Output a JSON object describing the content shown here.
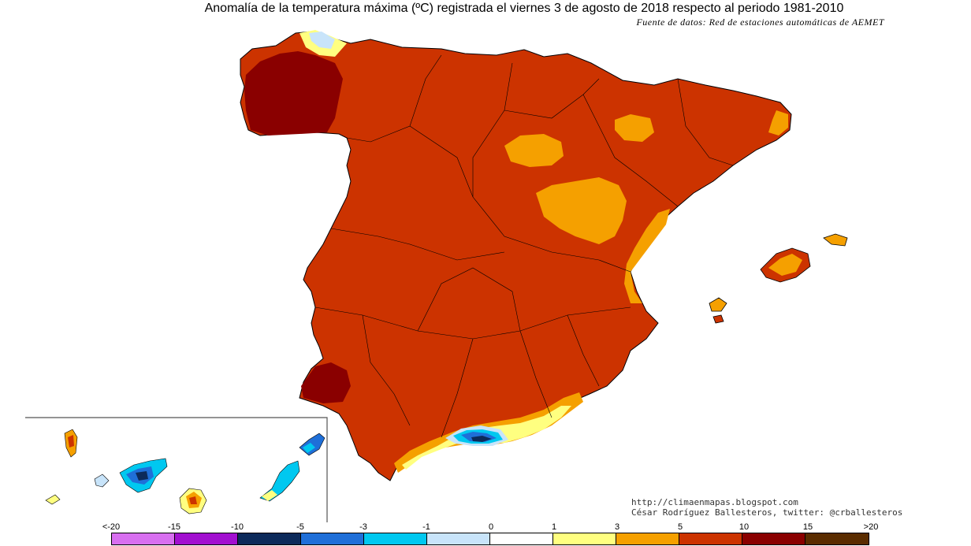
{
  "title": "Anomalía de la temperatura máxima (ºC) registrada el viernes 3 de agosto de 2018 respecto al periodo 1981-2010",
  "source": "Fuente de datos: Red de estaciones automáticas de AEMET",
  "credits": {
    "url": "http://climaenmapas.blogspot.com",
    "author": "César Rodríguez Ballesteros, twitter: @crballesteros"
  },
  "legend": {
    "labels": [
      "<-20",
      "-15",
      "-10",
      "-5",
      "-3",
      "-1",
      "0",
      "1",
      "3",
      "5",
      "10",
      "15",
      ">20"
    ],
    "colors": [
      "#d86ff0",
      "#a20fd0",
      "#0c2a5a",
      "#1f6fd8",
      "#00c8f0",
      "#c8e4fa",
      "#ffffff",
      "#ffff80",
      "#f5a000",
      "#cc3300",
      "#8a0000",
      "#5a2c00"
    ]
  },
  "map_colors": {
    "base": "#cc3300",
    "hot": "#8a0000",
    "warm": "#f5a000",
    "mild": "#ffff80",
    "cool": "#c8e4fa",
    "cold": "#00c8f0",
    "colder": "#1f6fd8",
    "coldest": "#0c2a5a",
    "border": "#000000",
    "frame": "#555555"
  }
}
